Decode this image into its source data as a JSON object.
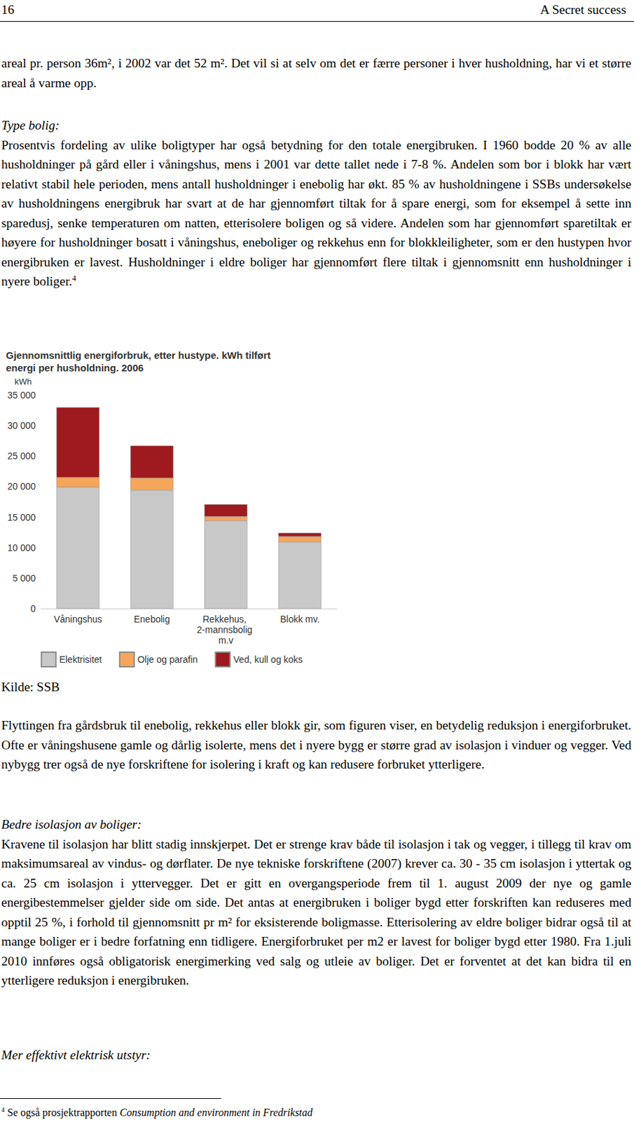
{
  "header": {
    "page_number": "16",
    "running_title": "A Secret success"
  },
  "paragraph_1": "areal pr. person 36m², i 2002 var det 52 m². Det vil si at selv om det er færre personer i hver husholdning, har vi et større areal å varme opp.",
  "section_1": {
    "heading": "Type bolig:",
    "text": "Prosentvis fordeling av ulike boligtyper har også betydning for den totale energibruken. I 1960 bodde 20 % av alle husholdninger på gård eller i våningshus, mens i 2001 var dette tallet nede i 7-8 %. Andelen som bor i blokk har vært relativt stabil hele perioden, mens antall husholdninger i enebolig har økt. 85 % av husholdningene i SSBs undersøkelse av husholdningens energibruk har svart at de har gjennomført tiltak for å spare energi, som for eksempel å sette inn sparedusj, senke temperaturen om natten, etterisolere boligen og så videre. Andelen som har gjennomført sparetiltak er høyere for husholdninger bosatt i våningshus, eneboliger og rekkehus enn for blokkleiligheter, som er den hustypen hvor energibruken er lavest. Husholdninger i eldre boliger har gjennomført flere tiltak i gjennomsnitt enn husholdninger i nyere boliger.",
    "footnote_ref": "4"
  },
  "chart_data": {
    "type": "bar",
    "stacked": true,
    "title": "Gjennomsnittlig energiforbruk, etter hustype. kWh tilført energi per husholdning. 2006",
    "y_label": "kWh",
    "categories": [
      "Våningshus",
      "Enebolig",
      "Rekkehus, 2-mannsbolig m.v",
      "Blokk mv."
    ],
    "series": [
      {
        "name": "Elektrisitet",
        "color": "#c8c8c8",
        "values": [
          19900,
          19400,
          14400,
          10900
        ]
      },
      {
        "name": "Olje og parafin",
        "color": "#f5a65b",
        "values": [
          1600,
          2000,
          700,
          900
        ]
      },
      {
        "name": "Ved, kull og koks",
        "color": "#9e1a1e",
        "values": [
          11500,
          5300,
          2000,
          600
        ]
      }
    ],
    "ylim": [
      0,
      35000
    ],
    "yticks": [
      0,
      {
        "value": 5000,
        "label": "5 000"
      },
      {
        "value": 10000,
        "label": "10 000"
      },
      {
        "value": 15000,
        "label": "15 000"
      },
      {
        "value": 20000,
        "label": "20 000"
      },
      {
        "value": 25000,
        "label": "25 000"
      },
      {
        "value": 30000,
        "label": "30 000"
      },
      {
        "value": 35000,
        "label": "35 000"
      }
    ],
    "grid": false,
    "legend": "bottom"
  },
  "source": "Kilde: SSB",
  "paragraph_2": "Flyttingen fra gårdsbruk til enebolig, rekkehus eller blokk gir, som figuren viser, en betydelig reduksjon i energiforbruket. Ofte er våningshusene gamle og dårlig isolerte, mens det i nyere bygg er større grad av isolasjon i vinduer og vegger. Ved nybygg trer også de nye forskriftene for isolering i kraft og kan redusere forbruket ytterligere.",
  "section_2": {
    "heading": "Bedre isolasjon av boliger:",
    "text": "Kravene til isolasjon har blitt stadig innskjerpet. Det er strenge krav både til isolasjon i tak og vegger, i tillegg til krav om maksimumsareal av vindus- og dørflater. De nye tekniske forskriftene (2007) krever ca. 30 - 35 cm isolasjon i yttertak og ca. 25 cm isolasjon i yttervegger. Det er gitt en overgangsperiode frem til 1. august 2009 der nye og gamle energibestemmelser gjelder side om side. Det antas at energibruken i boliger bygd etter forskriften kan reduseres med opptil 25 %, i forhold til gjennomsnitt pr m² for eksisterende boligmasse. Etterisolering av eldre boliger bidrar også til at mange boliger er i bedre forfatning enn tidligere. Energiforbruket per m2 er lavest for boliger bygd etter 1980. Fra 1.juli 2010 innføres også obligatorisk energimerking ved salg og utleie av boliger. Det er forventet at det kan bidra til en ytterligere reduksjon i energibruken."
  },
  "section_3": {
    "heading": "Mer effektivt elektrisk utstyr:"
  },
  "footnote": {
    "number": "4",
    "text": "Se også prosjektrapporten ",
    "title": "Consumption and environment in Fredrikstad"
  }
}
